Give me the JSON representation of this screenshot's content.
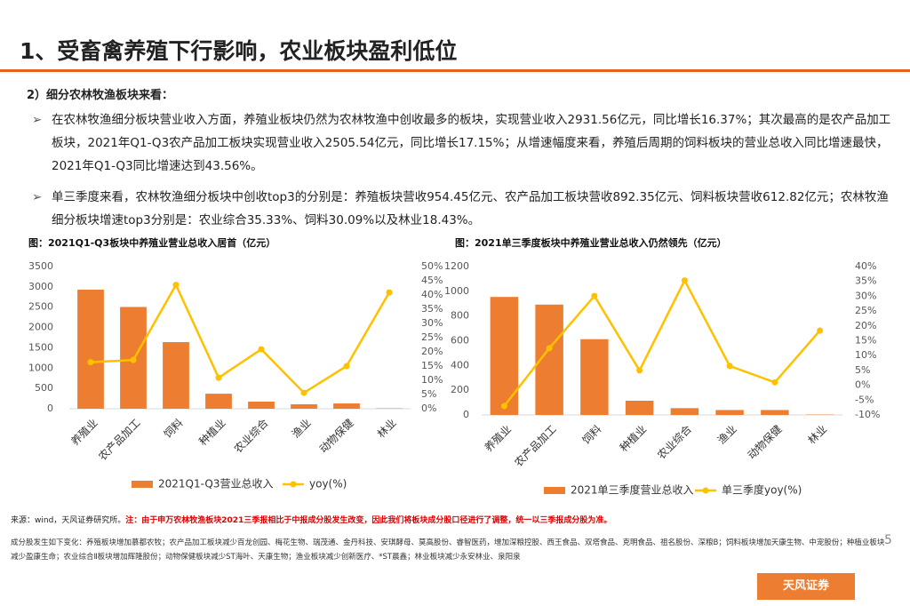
{
  "header": {
    "title": "1、受畜禽养殖下行影响，农业板块盈利低位"
  },
  "section": {
    "subtitle": "2）细分农林牧渔板块来看：",
    "bullets": [
      "在农林牧渔细分板块营业收入方面，养殖业板块仍然为农林牧渔中创收最多的板块，实现营业收入2931.56亿元，同比增长16.37%；其次最高的是农产品加工板块，2021年Q1-Q3农产品加工板块实现营业收入2505.54亿元，同比增长17.15%；从增速幅度来看，养殖后周期的饲料板块的营业总收入同比增速最快，2021年Q1-Q3同比增速达到43.56%。",
      "单三季度来看，农林牧渔细分板块中创收top3的分别是：养殖板块营收954.45亿元、农产品加工板块营收892.35亿元、饲料板块营收612.82亿元；农林牧渔细分板块增速top3分别是：农业综合35.33%、饲料30.09%以及林业18.43%。"
    ]
  },
  "chart_data": [
    {
      "type": "bar-line",
      "title": "图：2021Q1-Q3板块中养殖业营业总收入居首（亿元）",
      "categories": [
        "养殖业",
        "农产品加工",
        "饲料",
        "种植业",
        "农业综合",
        "渔业",
        "动物保健",
        "林业"
      ],
      "series": [
        {
          "name": "2021Q1-Q3营业总收入",
          "color": "#ed7d31",
          "values": [
            2931.56,
            2505.54,
            1640,
            370,
            175,
            110,
            130,
            10
          ]
        },
        {
          "name": "yoy(%)",
          "color": "#ffc000",
          "axis": "y2",
          "values": [
            16.37,
            17.15,
            43.56,
            10.9,
            20.9,
            5.6,
            15,
            40.9
          ]
        }
      ],
      "ylim": [
        0,
        3500
      ],
      "yticks": [
        0,
        500,
        1000,
        1500,
        2000,
        2500,
        3000,
        3500
      ],
      "y2lim": [
        0,
        50
      ],
      "y2ticks": [
        {
          "value": 0,
          "label": "0%"
        },
        {
          "value": 5,
          "label": "5%"
        },
        {
          "value": 10,
          "label": "10%"
        },
        {
          "value": 15,
          "label": "15%"
        },
        {
          "value": 20,
          "label": "20%"
        },
        {
          "value": 25,
          "label": "25%"
        },
        {
          "value": 30,
          "label": "30%"
        },
        {
          "value": 35,
          "label": "35%"
        },
        {
          "value": 40,
          "label": "40%"
        },
        {
          "value": 45,
          "label": "45%"
        },
        {
          "value": 50,
          "label": "50%"
        }
      ]
    },
    {
      "type": "bar-line",
      "title": "图：2021单三季度板块中养殖业营业总收入仍然领先（亿元）",
      "categories": [
        "养殖业",
        "农产品加工",
        "饲料",
        "种植业",
        "农业综合",
        "渔业",
        "动物保健",
        "林业"
      ],
      "series": [
        {
          "name": "2021单三季度营业总收入",
          "color": "#ed7d31",
          "values": [
            954.45,
            892.35,
            612.82,
            115,
            55,
            40,
            40,
            3
          ]
        },
        {
          "name": "单三季度yoy(%)",
          "color": "#ffc000",
          "axis": "y2",
          "values": [
            -7,
            12.5,
            30.09,
            5,
            35.33,
            6.5,
            1,
            18.43
          ]
        }
      ],
      "ylim": [
        0,
        1200
      ],
      "yticks": [
        0,
        200,
        400,
        600,
        800,
        1000,
        1200
      ],
      "y2lim": [
        -10,
        40
      ],
      "y2ticks": [
        {
          "value": -10,
          "label": "-10%"
        },
        {
          "value": -5,
          "label": "-5%"
        },
        {
          "value": 0,
          "label": "0%"
        },
        {
          "value": 5,
          "label": "5%"
        },
        {
          "value": 10,
          "label": "10%"
        },
        {
          "value": 15,
          "label": "15%"
        },
        {
          "value": 20,
          "label": "20%"
        },
        {
          "value": 25,
          "label": "25%"
        },
        {
          "value": 30,
          "label": "30%"
        },
        {
          "value": 35,
          "label": "35%"
        },
        {
          "value": 40,
          "label": "40%"
        }
      ]
    }
  ],
  "source": {
    "text": "来源：wind，天风证券研究所。",
    "note": "注：由于申万农林牧渔板块2021三季报相比于中报成分股发生改变，因此我们将板块成分股口径进行了调整，统一以三季报成分股为准。"
  },
  "footnote": "成分股发生如下变化：养殖板块增加慕都农牧；农产品加工板块减少百龙创园、梅花生物、瑞茂通、金丹科技、安琪酵母、莫高股份、睿智医药，增加深粮控股、西王食品、双塔食品、克明食品、祖名股份、深粮B；饲料板块增加天康生物、中宠股份；种植业板块减少盈康生命；农业综合Ⅱ板块增加辉隆股份；动物保健板块减少ST海叶、天康生物；渔业板块减少创新医疗、*ST晨鑫；林业板块减少永安林业、泉阳泉",
  "page": {
    "number": "5",
    "logo": "天风证券"
  }
}
